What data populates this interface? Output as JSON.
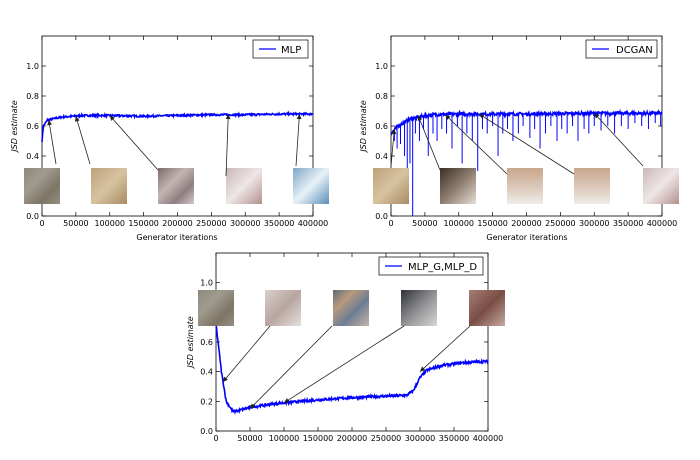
{
  "chart_data": [
    {
      "type": "line",
      "id": "mlp",
      "series": [
        {
          "name": "MLP",
          "color": "#0000ff"
        }
      ],
      "xlabel": "Generator iterations",
      "ylabel": "JSD estimate",
      "xlim": [
        0,
        400000
      ],
      "ylim": [
        0.0,
        1.2
      ],
      "xticks": [
        0,
        50000,
        100000,
        150000,
        200000,
        250000,
        300000,
        350000,
        400000
      ],
      "yticks": [
        0.0,
        0.2,
        0.4,
        0.6,
        0.8,
        1.0
      ],
      "grid": false,
      "legend_placement": "top-right",
      "curve": [
        [
          0,
          0.5
        ],
        [
          2000,
          0.6
        ],
        [
          8000,
          0.64
        ],
        [
          30000,
          0.66
        ],
        [
          60000,
          0.67
        ],
        [
          100000,
          0.67
        ],
        [
          150000,
          0.665
        ],
        [
          200000,
          0.67
        ],
        [
          250000,
          0.675
        ],
        [
          300000,
          0.675
        ],
        [
          350000,
          0.68
        ],
        [
          400000,
          0.68
        ]
      ],
      "noise": 0.006,
      "spikes": [],
      "arrow_targets": [
        [
          10000,
          0.64
        ],
        [
          50000,
          0.665
        ],
        [
          100000,
          0.67
        ],
        [
          275000,
          0.68
        ],
        [
          380000,
          0.68
        ]
      ]
    },
    {
      "type": "line",
      "id": "dcgan",
      "series": [
        {
          "name": "DCGAN",
          "color": "#0000ff"
        }
      ],
      "xlabel": "Generator iterations",
      "ylabel": "JSD estimate",
      "xlim": [
        0,
        400000
      ],
      "ylim": [
        0.0,
        1.2
      ],
      "xticks": [
        0,
        50000,
        100000,
        150000,
        200000,
        250000,
        300000,
        350000,
        400000
      ],
      "yticks": [
        0.0,
        0.2,
        0.4,
        0.6,
        0.8,
        1.0
      ],
      "grid": false,
      "legend_placement": "top-right",
      "curve": [
        [
          0,
          0.55
        ],
        [
          10000,
          0.6
        ],
        [
          30000,
          0.65
        ],
        [
          60000,
          0.675
        ],
        [
          100000,
          0.68
        ],
        [
          200000,
          0.68
        ],
        [
          300000,
          0.685
        ],
        [
          400000,
          0.685
        ]
      ],
      "noise": 0.01,
      "spikes": [
        [
          5000,
          0.5
        ],
        [
          9000,
          0.45
        ],
        [
          14000,
          0.48
        ],
        [
          20000,
          0.4
        ],
        [
          24000,
          0.2
        ],
        [
          28000,
          0.35
        ],
        [
          32000,
          0.0
        ],
        [
          36000,
          0.55
        ],
        [
          42000,
          0.5
        ],
        [
          48000,
          0.58
        ],
        [
          55000,
          0.4
        ],
        [
          62000,
          0.55
        ],
        [
          68000,
          0.5
        ],
        [
          75000,
          0.58
        ],
        [
          82000,
          0.55
        ],
        [
          90000,
          0.45
        ],
        [
          98000,
          0.6
        ],
        [
          105000,
          0.35
        ],
        [
          112000,
          0.55
        ],
        [
          120000,
          0.5
        ],
        [
          128000,
          0.3
        ],
        [
          135000,
          0.58
        ],
        [
          142000,
          0.55
        ],
        [
          150000,
          0.6
        ],
        [
          158000,
          0.4
        ],
        [
          165000,
          0.55
        ],
        [
          172000,
          0.58
        ],
        [
          180000,
          0.5
        ],
        [
          188000,
          0.55
        ],
        [
          195000,
          0.6
        ],
        [
          205000,
          0.52
        ],
        [
          212000,
          0.58
        ],
        [
          220000,
          0.45
        ],
        [
          228000,
          0.55
        ],
        [
          236000,
          0.6
        ],
        [
          245000,
          0.5
        ],
        [
          252000,
          0.58
        ],
        [
          260000,
          0.55
        ],
        [
          268000,
          0.6
        ],
        [
          276000,
          0.5
        ],
        [
          285000,
          0.58
        ],
        [
          292000,
          0.55
        ],
        [
          300000,
          0.6
        ],
        [
          310000,
          0.57
        ],
        [
          320000,
          0.6
        ],
        [
          330000,
          0.55
        ],
        [
          340000,
          0.6
        ],
        [
          350000,
          0.58
        ],
        [
          360000,
          0.62
        ],
        [
          370000,
          0.6
        ],
        [
          380000,
          0.58
        ],
        [
          390000,
          0.62
        ],
        [
          398000,
          0.6
        ]
      ],
      "arrow_targets": [
        [
          5000,
          0.58
        ],
        [
          40000,
          0.67
        ],
        [
          80000,
          0.675
        ],
        [
          130000,
          0.68
        ],
        [
          300000,
          0.685
        ]
      ]
    },
    {
      "type": "line",
      "id": "mlp_g_mlp_d",
      "series": [
        {
          "name": "MLP_G,MLP_D",
          "color": "#0000ff"
        }
      ],
      "xlabel": "",
      "ylabel": "JSD estimate",
      "xlim": [
        0,
        400000
      ],
      "ylim": [
        0.0,
        1.2
      ],
      "xticks": [
        0,
        50000,
        100000,
        150000,
        200000,
        250000,
        300000,
        350000,
        400000
      ],
      "yticks": [
        0.0,
        0.2,
        0.4,
        0.6,
        0.8,
        1.0
      ],
      "grid": false,
      "legend_placement": "top-right",
      "curve": [
        [
          0,
          0.72
        ],
        [
          3000,
          0.6
        ],
        [
          8000,
          0.4
        ],
        [
          15000,
          0.2
        ],
        [
          25000,
          0.13
        ],
        [
          35000,
          0.14
        ],
        [
          50000,
          0.16
        ],
        [
          80000,
          0.18
        ],
        [
          100000,
          0.19
        ],
        [
          150000,
          0.21
        ],
        [
          200000,
          0.225
        ],
        [
          250000,
          0.235
        ],
        [
          280000,
          0.24
        ],
        [
          290000,
          0.27
        ],
        [
          300000,
          0.36
        ],
        [
          310000,
          0.41
        ],
        [
          330000,
          0.44
        ],
        [
          360000,
          0.46
        ],
        [
          400000,
          0.47
        ]
      ],
      "noise": 0.008,
      "spikes": [],
      "arrow_targets": [
        [
          10000,
          0.33
        ],
        [
          50000,
          0.15
        ],
        [
          100000,
          0.19
        ],
        [
          300000,
          0.4
        ]
      ]
    }
  ]
}
